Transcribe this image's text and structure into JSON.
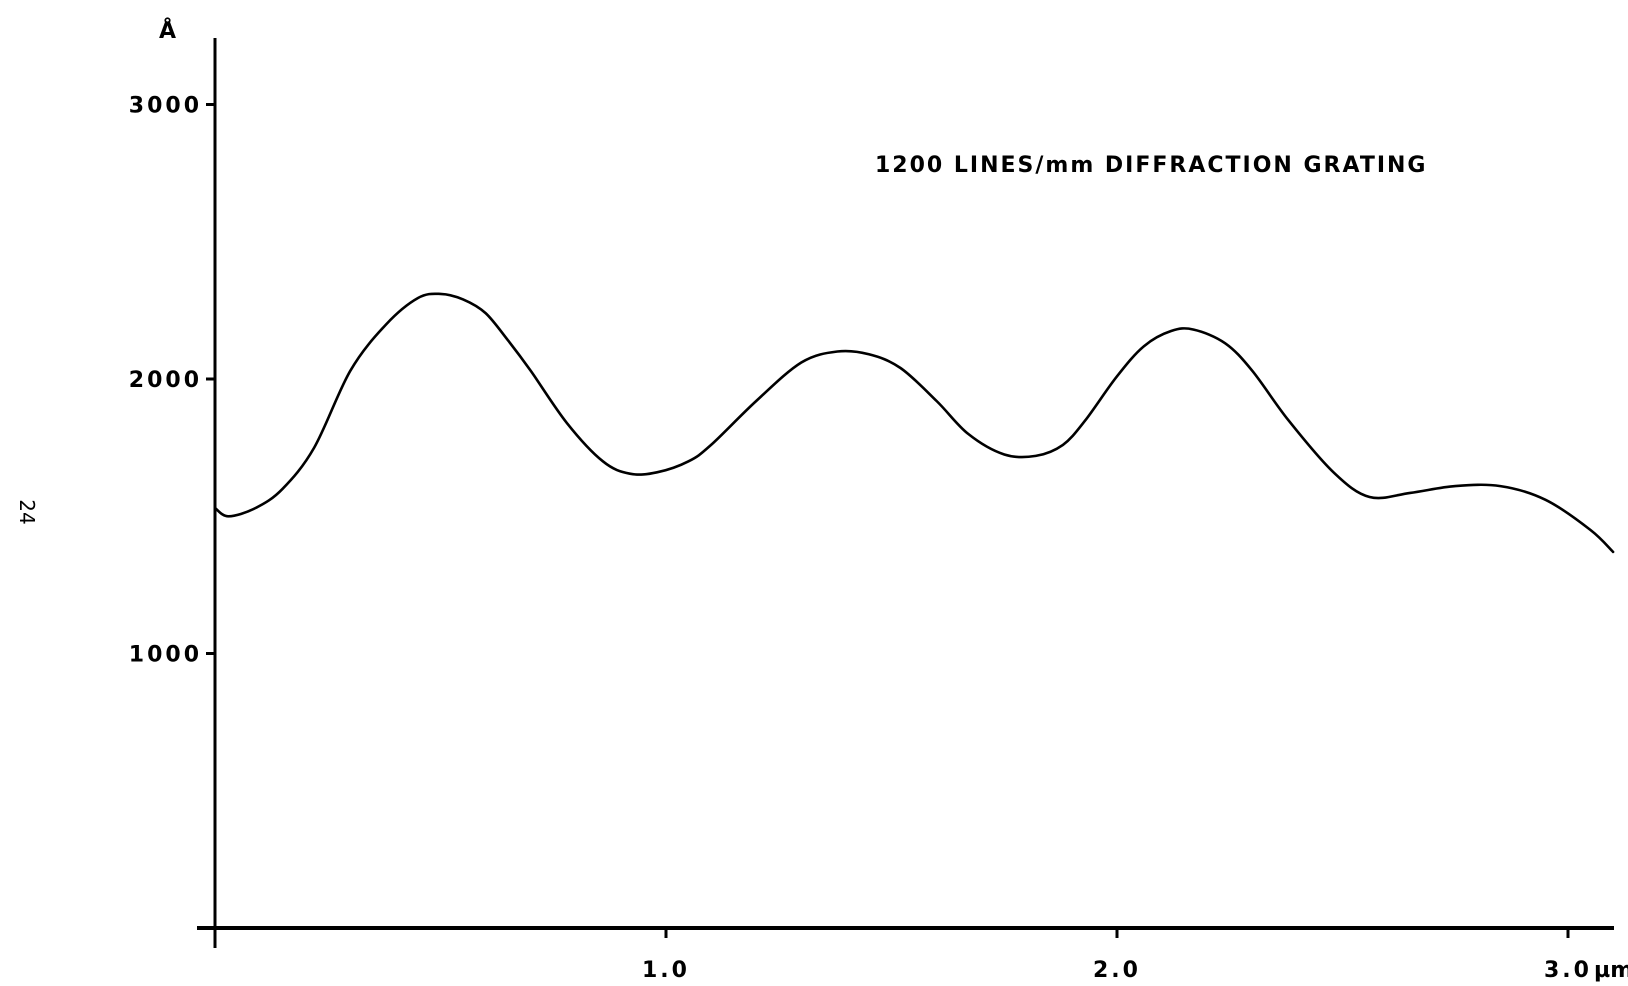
{
  "page_number": "24",
  "chart_data": {
    "type": "line",
    "title": "1200 LINES/mm DIFFRACTION GRATING",
    "ylabel": "Å",
    "xunit": "µm",
    "xlim": [
      0,
      3.1
    ],
    "ylim": [
      0,
      3250
    ],
    "grid": false,
    "x_ticks": [
      {
        "value": 1.0,
        "label": "1.0"
      },
      {
        "value": 2.0,
        "label": "2.0"
      },
      {
        "value": 3.0,
        "label": "3.0"
      }
    ],
    "y_ticks": [
      {
        "value": 1000,
        "label": "1000"
      },
      {
        "value": 2000,
        "label": "2000"
      },
      {
        "value": 3000,
        "label": "3000"
      }
    ],
    "series": [
      {
        "x": [
          0,
          0.03,
          0.09,
          0.15,
          0.22,
          0.3,
          0.38,
          0.45,
          0.5,
          0.55,
          0.6,
          0.65,
          0.7,
          0.78,
          0.86,
          0.92,
          0.98,
          1.05,
          1.1,
          1.2,
          1.3,
          1.38,
          1.45,
          1.52,
          1.6,
          1.67,
          1.75,
          1.82,
          1.88,
          1.93,
          2.0,
          2.06,
          2.12,
          2.17,
          2.24,
          2.3,
          2.38,
          2.48,
          2.56,
          2.65,
          2.75,
          2.85,
          2.95,
          3.05,
          3.1
        ],
        "y": [
          1530,
          1500,
          1530,
          1600,
          1750,
          2030,
          2200,
          2295,
          2310,
          2290,
          2240,
          2140,
          2030,
          1840,
          1700,
          1655,
          1660,
          1700,
          1760,
          1920,
          2060,
          2100,
          2090,
          2040,
          1920,
          1800,
          1725,
          1720,
          1760,
          1850,
          2010,
          2120,
          2175,
          2180,
          2130,
          2030,
          1850,
          1660,
          1570,
          1585,
          1610,
          1610,
          1560,
          1450,
          1370
        ]
      }
    ]
  }
}
